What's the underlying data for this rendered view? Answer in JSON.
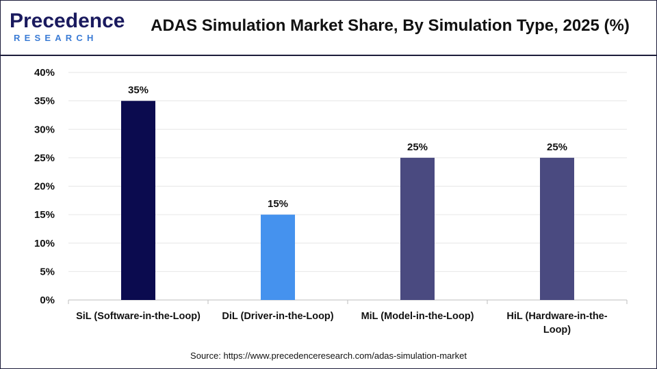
{
  "header": {
    "logo_text": "Precedence",
    "logo_subtext": "RESEARCH",
    "title": "ADAS Simulation Market Share, By Simulation Type, 2025 (%)"
  },
  "footer": {
    "source": "Source: https://www.precedenceresearch.com/adas-simulation-market"
  },
  "colors": {
    "bar_sil": "#0b0b4f",
    "bar_dil": "#4592ee",
    "bar_mil": "#4a4a80",
    "bar_hil": "#4a4a80",
    "grid": "#e6e6e6",
    "logo_primary": "#1a1a5e",
    "logo_accent": "#3a7bd5"
  },
  "chart_data": {
    "type": "bar",
    "title": "ADAS Simulation Market Share, By Simulation Type, 2025 (%)",
    "categories": [
      [
        "SiL (Software-in-the-Loop)"
      ],
      [
        "DiL (Driver-in-the-Loop)"
      ],
      [
        "MiL (Model-in-the-Loop)"
      ],
      [
        "HiL (Hardware-in-the-",
        "Loop)"
      ]
    ],
    "values": [
      35,
      15,
      25,
      25
    ],
    "data_labels": [
      "35%",
      "15%",
      "25%",
      "25%"
    ],
    "ylim": [
      0,
      40
    ],
    "yticks": [
      0,
      5,
      10,
      15,
      20,
      25,
      30,
      35,
      40
    ],
    "ytick_labels": [
      "0%",
      "5%",
      "10%",
      "15%",
      "20%",
      "25%",
      "30%",
      "35%",
      "40%"
    ],
    "grid": true,
    "legend": "none"
  }
}
